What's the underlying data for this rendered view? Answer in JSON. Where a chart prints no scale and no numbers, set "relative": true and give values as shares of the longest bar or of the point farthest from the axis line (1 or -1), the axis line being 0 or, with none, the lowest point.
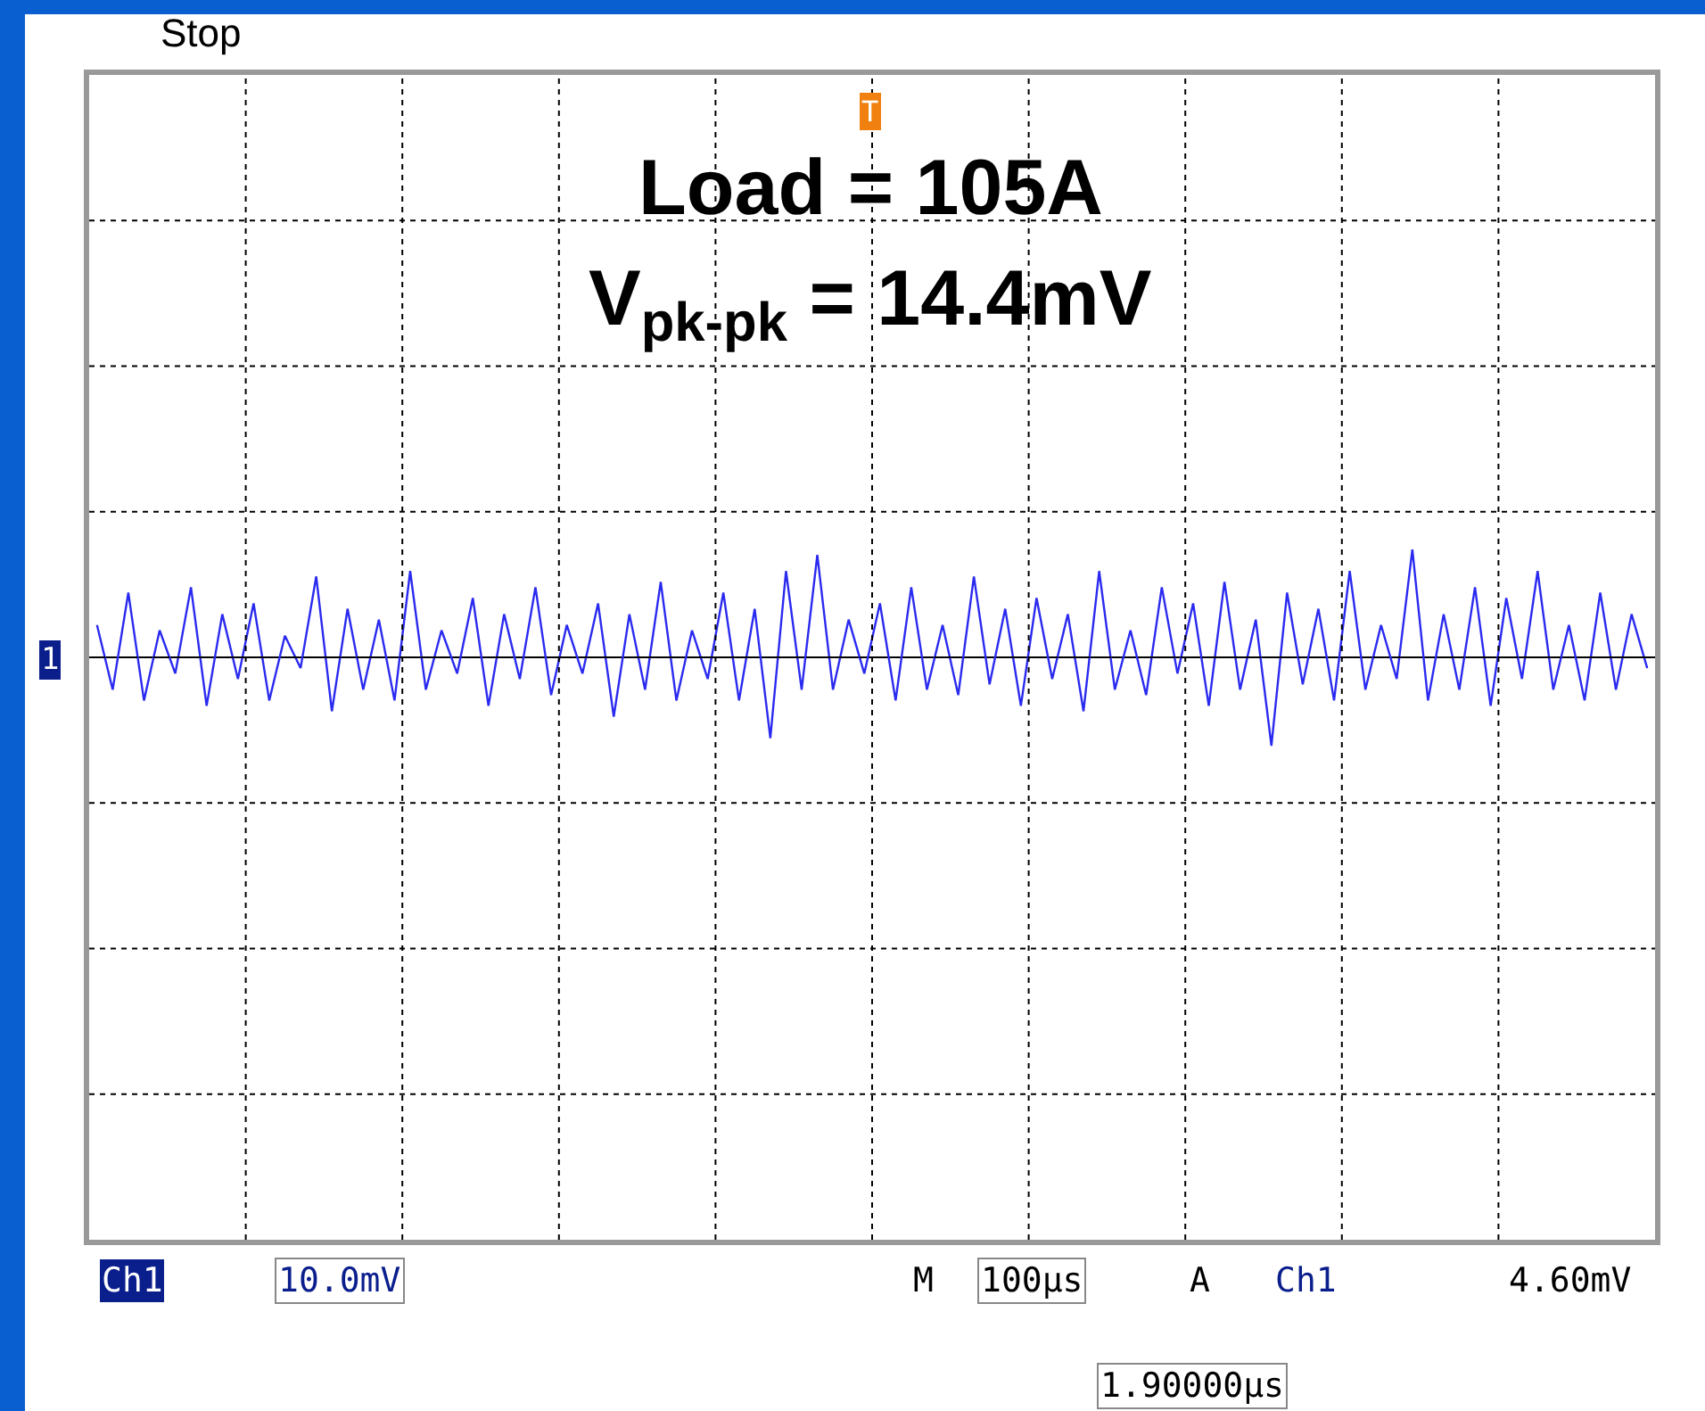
{
  "chart_data": {
    "type": "line",
    "relative": true,
    "grid": true,
    "tick_labels": false,
    "marker": "none",
    "line_style": "solid",
    "categories": [
      null,
      null,
      null,
      null,
      null,
      null,
      null,
      null,
      null,
      null,
      null,
      null,
      null,
      null,
      null,
      null,
      null,
      null,
      null,
      null,
      null,
      null,
      null,
      null,
      null,
      null,
      null,
      null,
      null,
      null,
      null,
      null,
      null,
      null,
      null,
      null,
      null,
      null,
      null,
      null,
      null,
      null,
      null,
      null,
      null,
      null,
      null,
      null,
      null,
      null,
      null,
      null,
      null,
      null,
      null,
      null,
      null,
      null,
      null,
      null,
      null,
      null,
      null,
      null,
      null,
      null,
      null,
      null,
      null,
      null,
      null,
      null,
      null,
      null,
      null,
      null,
      null,
      null,
      null,
      null,
      null,
      null,
      null,
      null,
      null,
      null,
      null,
      null,
      null,
      null,
      null,
      null,
      null,
      null,
      null,
      null,
      null,
      null,
      null,
      null
    ],
    "series": [
      {
        "color": "#2a2af0",
        "values": [
          0.3,
          -0.3,
          0.6,
          -0.4,
          0.25,
          -0.15,
          0.65,
          -0.45,
          0.4,
          -0.2,
          0.5,
          -0.4,
          0.2,
          -0.1,
          0.75,
          -0.5,
          0.45,
          -0.3,
          0.35,
          -0.4,
          0.8,
          -0.3,
          0.25,
          -0.15,
          0.55,
          -0.45,
          0.4,
          -0.2,
          0.65,
          -0.35,
          0.3,
          -0.15,
          0.5,
          -0.55,
          0.4,
          -0.3,
          0.7,
          -0.4,
          0.25,
          -0.2,
          0.6,
          -0.4,
          0.45,
          -0.75,
          0.8,
          -0.3,
          0.95,
          -0.3,
          0.35,
          -0.15,
          0.5,
          -0.4,
          0.65,
          -0.3,
          0.3,
          -0.35,
          0.75,
          -0.25,
          0.45,
          -0.45,
          0.55,
          -0.2,
          0.4,
          -0.5,
          0.8,
          -0.3,
          0.25,
          -0.35,
          0.65,
          -0.15,
          0.5,
          -0.45,
          0.7,
          -0.3,
          0.35,
          -0.82,
          0.6,
          -0.25,
          0.45,
          -0.4,
          0.8,
          -0.3,
          0.3,
          -0.2,
          1.0,
          -0.4,
          0.4,
          -0.3,
          0.65,
          -0.45,
          0.55,
          -0.2,
          0.8,
          -0.3,
          0.3,
          -0.4,
          0.6,
          -0.3,
          0.4,
          -0.1
        ]
      }
    ],
    "annotations": [
      "Stop",
      "Load = 105A",
      "V$_{pk-pk}$ = 14.4mV",
      "Ch1",
      "10.0mV",
      "M",
      "100µs",
      "A",
      "Ch1",
      "4.60mV",
      "1.90000µs",
      "1",
      "T"
    ]
  }
}
